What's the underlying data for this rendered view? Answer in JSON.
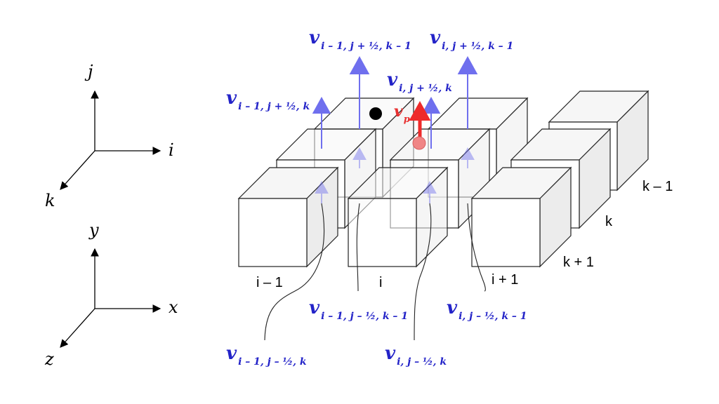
{
  "axes_ijk": {
    "vertical": "j",
    "horizontal": "i",
    "depth": "k"
  },
  "axes_xyz": {
    "vertical": "y",
    "horizontal": "x",
    "depth": "z"
  },
  "column_labels": [
    "i – 1",
    "i",
    "i + 1"
  ],
  "layer_labels": [
    "k – 1",
    "k",
    "k + 1"
  ],
  "velocity_labels": {
    "v_im1_jp_km1": {
      "base": "v",
      "sub": "i – 1, j + ½, k – 1"
    },
    "v_i_jp_km1": {
      "base": "v",
      "sub": "i, j + ½, k – 1"
    },
    "v_i_jp_k": {
      "base": "v",
      "sub": "i, j + ½, k"
    },
    "v_im1_jp_k": {
      "base": "v",
      "sub": "i – 1, j + ½, k"
    },
    "v_p": {
      "base": "v",
      "sub": "p"
    },
    "v_im1_jm_km1": {
      "base": "v",
      "sub": "i – 1, j – ½, k – 1"
    },
    "v_i_jm_km1": {
      "base": "v",
      "sub": "i, j – ½, k – 1"
    },
    "v_im1_jm_k": {
      "base": "v",
      "sub": "i – 1, j – ½, k"
    },
    "v_i_jm_k": {
      "base": "v",
      "sub": "i, j – ½, k"
    }
  },
  "colors": {
    "velocity_arrow": "#6f6fee",
    "velocity_text": "#2323c8",
    "particle_velocity": "#ee2a2a",
    "particle": "#f08585",
    "node": "#000000"
  }
}
